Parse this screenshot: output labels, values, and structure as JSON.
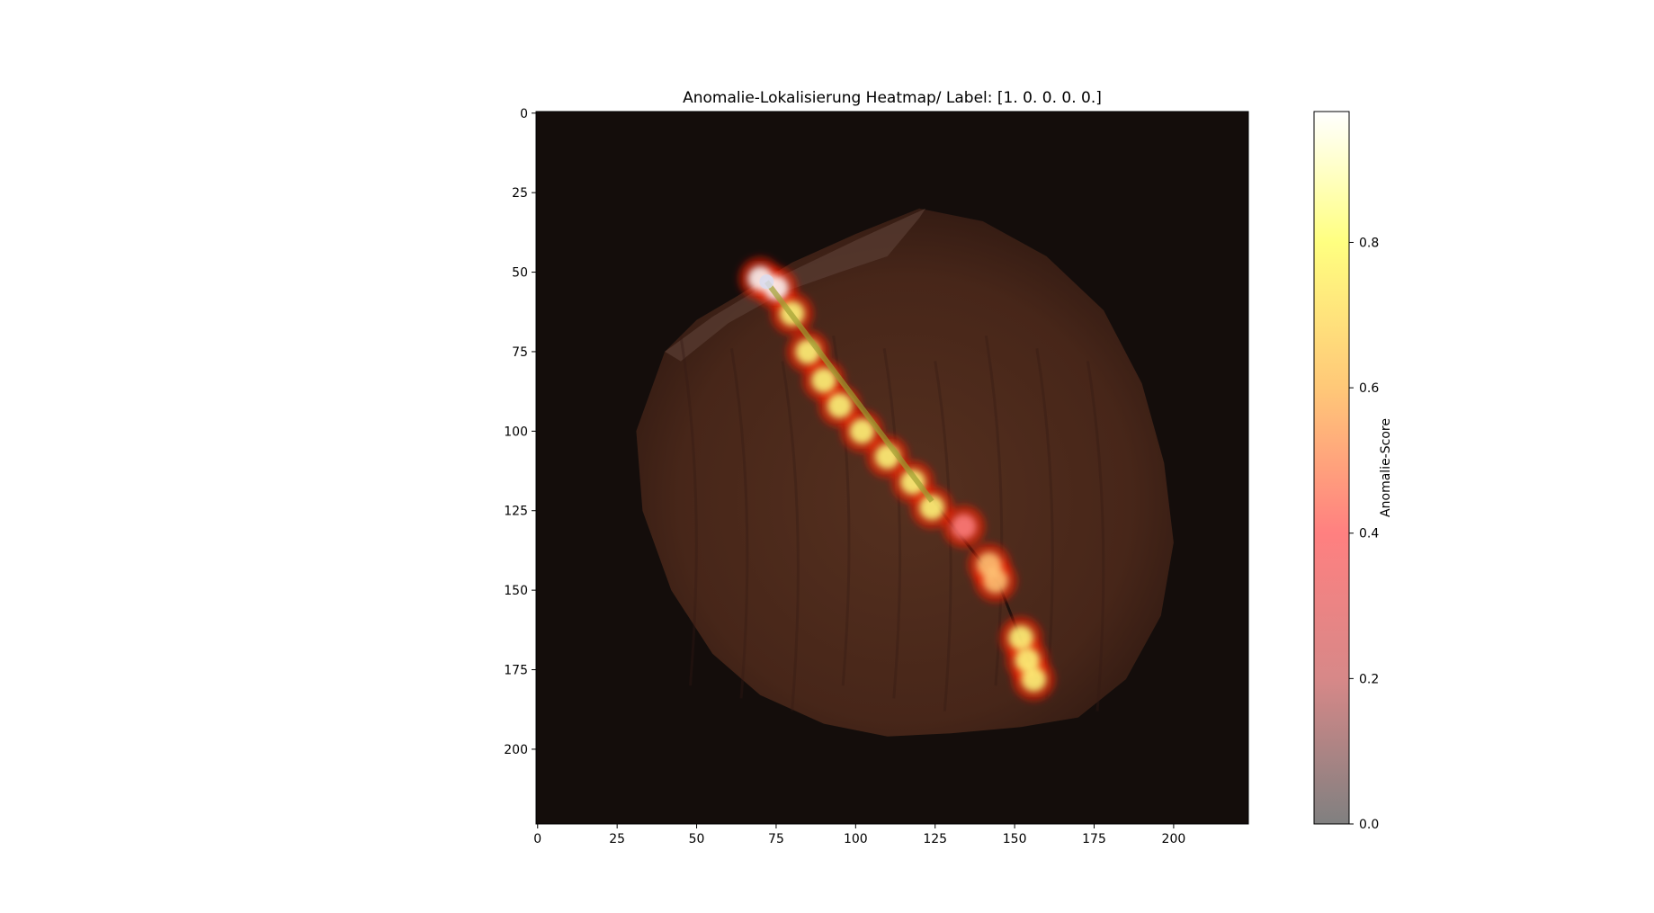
{
  "chart_data": {
    "type": "heatmap",
    "title": "Anomalie-Lokalisierung Heatmap/ Label: [1. 0. 0. 0. 0.]",
    "xlim": [
      -0.5,
      223.5
    ],
    "ylim": [
      223.5,
      -0.5
    ],
    "x_ticks": [
      0,
      25,
      50,
      75,
      100,
      125,
      150,
      175,
      200
    ],
    "y_ticks": [
      0,
      25,
      50,
      75,
      100,
      125,
      150,
      175,
      200
    ],
    "colorbar": {
      "label": "Anomalie-Score",
      "range": [
        0.0,
        0.98
      ],
      "ticks": [
        "0.0",
        "0.2",
        "0.4",
        "0.6",
        "0.8"
      ],
      "tick_values": [
        0.0,
        0.2,
        0.4,
        0.6,
        0.8
      ],
      "stops": [
        {
          "v": 0.0,
          "color": "#808080"
        },
        {
          "v": 0.2,
          "color": "#d78888"
        },
        {
          "v": 0.4,
          "color": "#ff8080"
        },
        {
          "v": 0.6,
          "color": "#ffc878"
        },
        {
          "v": 0.8,
          "color": "#ffff80"
        },
        {
          "v": 0.98,
          "color": "#ffffff"
        }
      ]
    },
    "background": {
      "object": "hazelnut",
      "colors": {
        "backdrop": "#140d0b",
        "nut": "#4c2a20",
        "nut_dark": "#331a13",
        "cap": "#5a3d33"
      }
    },
    "anomaly_regions": [
      {
        "x": 70,
        "y": 52,
        "score": 0.95
      },
      {
        "x": 75,
        "y": 55,
        "score": 0.9
      },
      {
        "x": 80,
        "y": 63,
        "score": 0.75
      },
      {
        "x": 85,
        "y": 75,
        "score": 0.75
      },
      {
        "x": 90,
        "y": 84,
        "score": 0.8
      },
      {
        "x": 95,
        "y": 92,
        "score": 0.8
      },
      {
        "x": 102,
        "y": 100,
        "score": 0.8
      },
      {
        "x": 110,
        "y": 108,
        "score": 0.8
      },
      {
        "x": 118,
        "y": 116,
        "score": 0.75
      },
      {
        "x": 124,
        "y": 124,
        "score": 0.7
      },
      {
        "x": 134,
        "y": 130,
        "score": 0.4
      },
      {
        "x": 142,
        "y": 142,
        "score": 0.45
      },
      {
        "x": 144,
        "y": 147,
        "score": 0.45
      },
      {
        "x": 152,
        "y": 165,
        "score": 0.7
      },
      {
        "x": 154,
        "y": 172,
        "score": 0.75
      },
      {
        "x": 156,
        "y": 178,
        "score": 0.7
      }
    ]
  }
}
